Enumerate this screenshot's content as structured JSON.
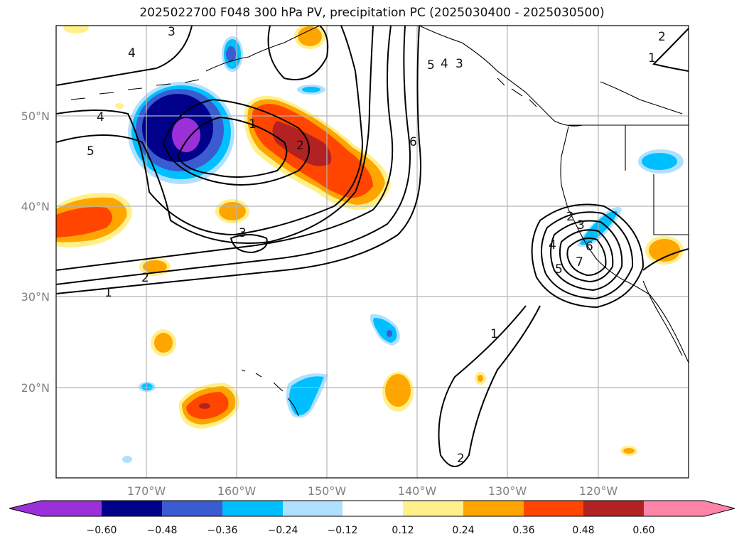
{
  "title": "2025022700 F048 300 hPa PV, precipitation PC (2025030400 - 2025030500)",
  "axes": {
    "lat_ticks": [
      "50°N",
      "40°N",
      "30°N",
      "20°N"
    ],
    "lon_ticks": [
      "170°W",
      "160°W",
      "150°W",
      "140°W",
      "130°W",
      "120°W"
    ]
  },
  "colorbar": {
    "colors": [
      "#9b30d8",
      "#00008b",
      "#3a5cd0",
      "#00bfff",
      "#b0e0ff",
      "#ffffff",
      "#fff08a",
      "#ffa500",
      "#ff4500",
      "#b22222",
      "#ff85a8"
    ],
    "ticks": [
      "−0.60",
      "−0.48",
      "−0.36",
      "−0.24",
      "−0.12",
      "0.12",
      "0.24",
      "0.36",
      "0.48",
      "0.60"
    ]
  },
  "contour_labels": [
    "3",
    "4",
    "5",
    "4",
    "1",
    "2",
    "3",
    "2",
    "1",
    "5",
    "4",
    "3",
    "6",
    "2",
    "1",
    "2",
    "3",
    "4",
    "5",
    "6",
    "7",
    "1",
    "2"
  ]
}
